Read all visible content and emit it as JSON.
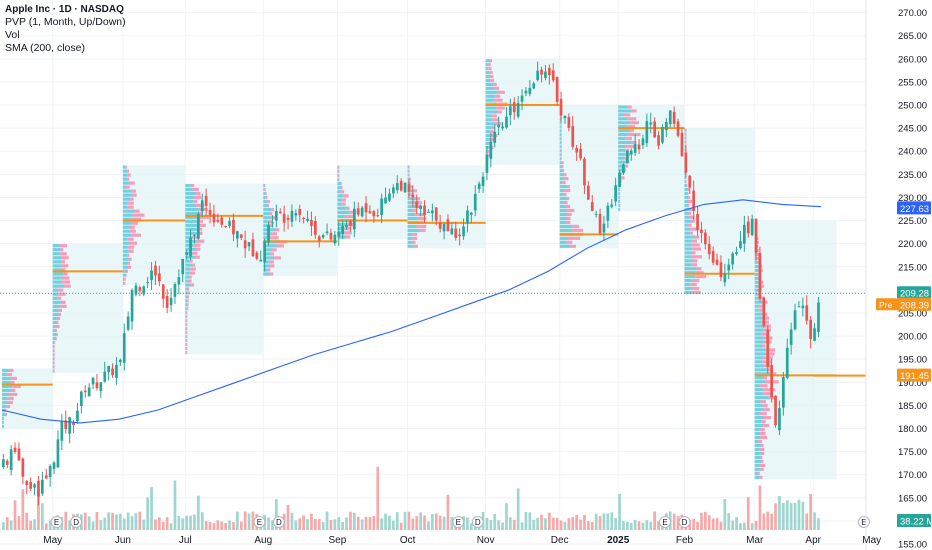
{
  "legend": {
    "title": "Apple Inc · 1D · NASDAQ",
    "indicators": [
      "PVP (1, Month, Up/Down)",
      "Vol",
      "SMA (200, close)"
    ]
  },
  "colors": {
    "up": "#26a69a",
    "down": "#ef5350",
    "vol_up": "#9fd6cf",
    "vol_down": "#f5a9a8",
    "sma": "#2962ff",
    "poc": "#f7931a",
    "profile_bg": "#dff4f7",
    "last_price_tag": "#2962ff",
    "pre_tag": "#f7931a",
    "poc_tag": "#f7931a"
  },
  "chart_data": {
    "type": "candlestick",
    "symbol": "Apple Inc",
    "interval": "1D",
    "exchange": "NASDAQ",
    "x_labels": [
      "May",
      "Jun",
      "Jul",
      "Aug",
      "Sep",
      "Oct",
      "Nov",
      "Dec",
      "2025",
      "Feb",
      "Mar",
      "Apr",
      "May"
    ],
    "y_ticks": [
      155,
      160,
      165,
      170,
      175,
      180,
      185,
      190,
      195,
      200,
      205,
      210,
      215,
      220,
      225,
      230,
      235,
      240,
      245,
      250,
      255,
      260,
      265,
      270
    ],
    "y_ticks_labels": [
      "155.00",
      "160.00",
      "165.00",
      "170.00",
      "175.00",
      "180.00",
      "185.00",
      "190.00",
      "195.00",
      "200.00",
      "205.00",
      "210.00",
      "215.00",
      "220.00",
      "225.00",
      "230.00",
      "235.00",
      "240.00",
      "245.00",
      "250.00",
      "255.00",
      "260.00",
      "265.00",
      "270.00"
    ],
    "ylim": [
      155,
      271
    ],
    "price_series_approx": [
      [
        0,
        172
      ],
      [
        3,
        175
      ],
      [
        6,
        168
      ],
      [
        9,
        166
      ],
      [
        12,
        171
      ],
      [
        15,
        180
      ],
      [
        18,
        182
      ],
      [
        21,
        189
      ],
      [
        24,
        190
      ],
      [
        27,
        192
      ],
      [
        30,
        194
      ],
      [
        33,
        210
      ],
      [
        36,
        212
      ],
      [
        39,
        214
      ],
      [
        42,
        207
      ],
      [
        45,
        214
      ],
      [
        48,
        220
      ],
      [
        51,
        229
      ],
      [
        54,
        226
      ],
      [
        57,
        224
      ],
      [
        60,
        222
      ],
      [
        63,
        219
      ],
      [
        66,
        218
      ],
      [
        69,
        226
      ],
      [
        72,
        226
      ],
      [
        75,
        228
      ],
      [
        78,
        225
      ],
      [
        81,
        222
      ],
      [
        84,
        221
      ],
      [
        87,
        223
      ],
      [
        90,
        226
      ],
      [
        93,
        228
      ],
      [
        96,
        227
      ],
      [
        99,
        232
      ],
      [
        102,
        233
      ],
      [
        105,
        229
      ],
      [
        108,
        226
      ],
      [
        111,
        226
      ],
      [
        114,
        222
      ],
      [
        117,
        223
      ],
      [
        120,
        228
      ],
      [
        123,
        236
      ],
      [
        126,
        243
      ],
      [
        129,
        247
      ],
      [
        132,
        251
      ],
      [
        135,
        255
      ],
      [
        138,
        258
      ],
      [
        141,
        254
      ],
      [
        144,
        247
      ],
      [
        147,
        240
      ],
      [
        150,
        231
      ],
      [
        153,
        222
      ],
      [
        156,
        230
      ],
      [
        159,
        238
      ],
      [
        162,
        240
      ],
      [
        165,
        246
      ],
      [
        168,
        242
      ],
      [
        171,
        248
      ],
      [
        174,
        240
      ],
      [
        177,
        227
      ],
      [
        180,
        219
      ],
      [
        183,
        214
      ],
      [
        186,
        214
      ],
      [
        189,
        222
      ],
      [
        192,
        224
      ],
      [
        195,
        202
      ],
      [
        198,
        180
      ],
      [
        201,
        198
      ],
      [
        204,
        208
      ],
      [
        207,
        199
      ],
      [
        210,
        209
      ]
    ],
    "sma200_approx": [
      [
        0,
        184
      ],
      [
        10,
        182
      ],
      [
        20,
        181.2
      ],
      [
        30,
        182
      ],
      [
        40,
        184
      ],
      [
        50,
        187
      ],
      [
        60,
        190
      ],
      [
        70,
        193
      ],
      [
        80,
        196
      ],
      [
        90,
        198.5
      ],
      [
        100,
        201
      ],
      [
        110,
        204
      ],
      [
        120,
        207
      ],
      [
        130,
        210
      ],
      [
        140,
        214
      ],
      [
        150,
        219
      ],
      [
        160,
        223
      ],
      [
        170,
        226
      ],
      [
        180,
        228.5
      ],
      [
        190,
        229.5
      ],
      [
        200,
        228.5
      ],
      [
        210,
        228
      ]
    ],
    "volume_profile_pocs": [
      {
        "label": "May-24",
        "poc": 189.5,
        "low": 180,
        "high": 193
      },
      {
        "label": "Jun-24",
        "poc": 214,
        "low": 192,
        "high": 220
      },
      {
        "label": "Jul-24",
        "poc": 225,
        "low": 211,
        "high": 237
      },
      {
        "label": "Aug-24",
        "poc": 226,
        "low": 196,
        "high": 233
      },
      {
        "label": "Sep-24",
        "poc": 220.5,
        "low": 213,
        "high": 233
      },
      {
        "label": "Oct-24",
        "poc": 225,
        "low": 221,
        "high": 237
      },
      {
        "label": "Nov-24",
        "poc": 224.5,
        "low": 219,
        "high": 237
      },
      {
        "label": "Dec-24",
        "poc": 250,
        "low": 237,
        "high": 260
      },
      {
        "label": "Jan-25",
        "poc": 222,
        "low": 219,
        "high": 250
      },
      {
        "label": "Feb-25",
        "poc": 245,
        "low": 227,
        "high": 250
      },
      {
        "label": "Mar-25",
        "poc": 213.5,
        "low": 209,
        "high": 245
      },
      {
        "label": "Apr-25",
        "poc": 191.5,
        "low": 169,
        "high": 225
      }
    ],
    "price_tags": {
      "sma": "227.63",
      "last": "209.28",
      "pre_label": "Pre",
      "pre": "208.39",
      "poc": "191.45",
      "volume": "38.22 M"
    },
    "grid": true,
    "volume_shown": true
  }
}
